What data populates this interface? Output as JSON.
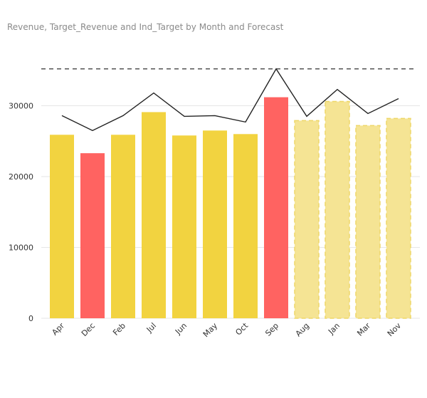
{
  "chart_data": {
    "type": "bar",
    "title": "Revenue, Target_Revenue and Ind_Target by Month and Forecast",
    "xlabel": "",
    "ylabel": "",
    "ylim": [
      0,
      36000
    ],
    "yticks": [
      0,
      10000,
      20000,
      30000
    ],
    "y_tick_labels": [
      "0",
      "10000",
      "20000",
      "30000"
    ],
    "categories": [
      "Apr",
      "Dec",
      "Feb",
      "Jul",
      "Jun",
      "May",
      "Oct",
      "Sep",
      "Aug",
      "Jan",
      "Mar",
      "Nov"
    ],
    "series": [
      {
        "type": "bar",
        "values": [
          25900,
          23300,
          25900,
          29100,
          25800,
          26500,
          26000,
          31200,
          27900,
          30600,
          27200,
          28200
        ],
        "bar_styles": [
          "actual",
          "below",
          "actual",
          "actual",
          "actual",
          "actual",
          "actual",
          "below",
          "forecast",
          "forecast",
          "forecast",
          "forecast"
        ]
      },
      {
        "type": "line",
        "values": [
          28600,
          26500,
          28600,
          31800,
          28500,
          28600,
          27700,
          35200,
          28500,
          32300,
          28900,
          31000
        ]
      },
      {
        "type": "reference_line",
        "value": 35200
      }
    ],
    "grid": true,
    "legend": "none",
    "colors": {
      "actual": "#F2D340",
      "below": "#FF6361",
      "forecast": "#F5E494",
      "forecast_border": "#EED768",
      "line": "#222222",
      "reference": "#333333",
      "grid": "#e6e6e6"
    }
  }
}
